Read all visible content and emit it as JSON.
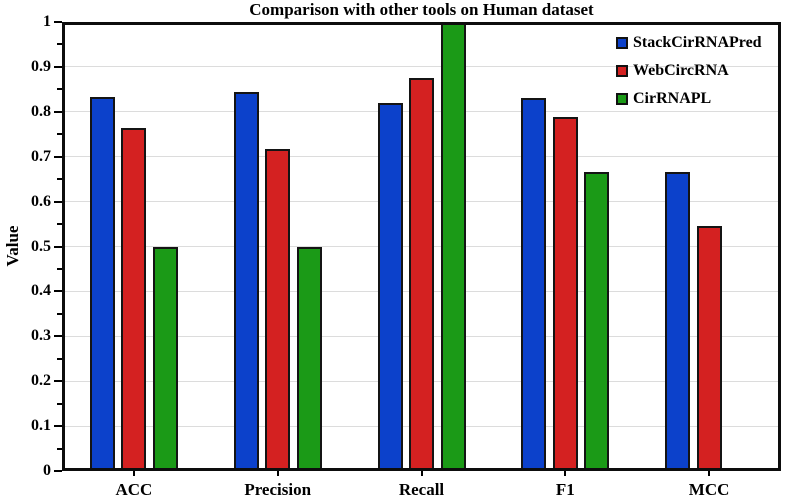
{
  "figure": {
    "title": "Comparison with other tools on Human dataset",
    "y_axis_title": "Value"
  },
  "chart_data": {
    "type": "bar",
    "title": "Comparison with other tools on Human dataset",
    "xlabel": "",
    "ylabel": "Value",
    "ylim": [
      0,
      1
    ],
    "ytick_step": 0.1,
    "grid": true,
    "legend_position": "top-right-inside",
    "categories": [
      "ACC",
      "Precision",
      "Recall",
      "F1",
      "MCC"
    ],
    "ytick_labels": [
      "0",
      "0.1",
      "0.2",
      "0.3",
      "0.4",
      "0.5",
      "0.6",
      "0.7",
      "0.8",
      "0.9",
      "1"
    ],
    "series": [
      {
        "name": "StackCirRNAPred",
        "color": "#0c41cb",
        "values": [
          0.833,
          0.843,
          0.82,
          0.831,
          0.665
        ]
      },
      {
        "name": "WebCircRNA",
        "color": "#d42121",
        "values": [
          0.765,
          0.718,
          0.875,
          0.789,
          0.545
        ]
      },
      {
        "name": "CirRNAPL",
        "color": "#1b9a17",
        "values": [
          0.5,
          0.5,
          1.0,
          0.667,
          null
        ]
      }
    ]
  },
  "colors": {
    "bar_border": "#141414",
    "grid_line": "#dcdcdc",
    "frame": "#0d0d0d",
    "text": "#000000",
    "background": "#ffffff"
  }
}
